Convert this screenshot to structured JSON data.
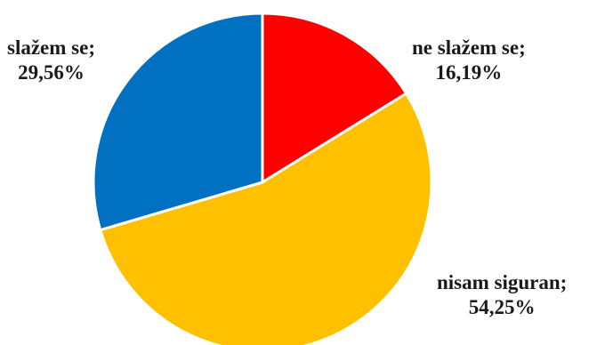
{
  "chart_data": {
    "type": "pie",
    "title": "",
    "slices": [
      {
        "label": "ne slažem se",
        "value": 16.19,
        "value_text": "16,19%",
        "color": "#FF0000"
      },
      {
        "label": "nisam siguran",
        "value": 54.25,
        "value_text": "54,25%",
        "color": "#FFC000"
      },
      {
        "label": "slažem se",
        "value": 29.56,
        "value_text": "29,56%",
        "color": "#0070C0"
      }
    ],
    "start_angle": "12 o'clock",
    "direction": "clockwise",
    "legend": "none",
    "label_separator": ";"
  }
}
